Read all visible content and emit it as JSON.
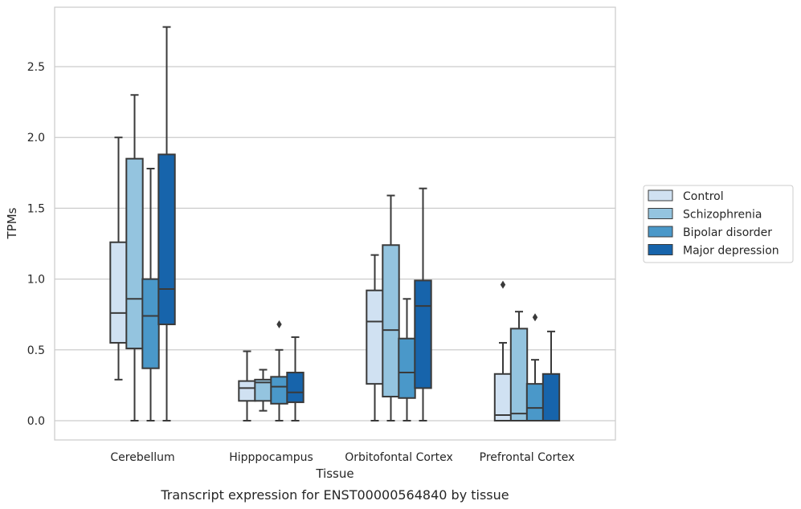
{
  "chart_data": {
    "type": "box",
    "title": "",
    "caption": "Transcript expression for ENST00000564840 by tissue",
    "xlabel": "Tissue",
    "ylabel": "TPMs",
    "ylim": [
      -0.13,
      2.92
    ],
    "yticks": [
      "0.0",
      "0.5",
      "1.0",
      "1.5",
      "2.0",
      "2.5"
    ],
    "categories": [
      "Cerebellum",
      "Hipppocampus",
      "Orbitofontal Cortex",
      "Prefrontal Cortex"
    ],
    "grid": "horizontal",
    "legend_position": "right",
    "series": [
      {
        "name": "Control",
        "color": "#d0e1f2",
        "boxes": [
          {
            "whislo": 0.29,
            "q1": 0.55,
            "med": 0.76,
            "q3": 1.26,
            "whishi": 2.0,
            "fliers": []
          },
          {
            "whislo": 0.0,
            "q1": 0.14,
            "med": 0.23,
            "q3": 0.28,
            "whishi": 0.49,
            "fliers": []
          },
          {
            "whislo": 0.0,
            "q1": 0.26,
            "med": 0.7,
            "q3": 0.92,
            "whishi": 1.17,
            "fliers": []
          },
          {
            "whislo": 0.0,
            "q1": 0.0,
            "med": 0.04,
            "q3": 0.33,
            "whishi": 0.55,
            "fliers": [
              0.96
            ]
          }
        ]
      },
      {
        "name": "Schizophrenia",
        "color": "#94c4df",
        "boxes": [
          {
            "whislo": 0.0,
            "q1": 0.51,
            "med": 0.86,
            "q3": 1.85,
            "whishi": 2.3,
            "fliers": []
          },
          {
            "whislo": 0.07,
            "q1": 0.14,
            "med": 0.27,
            "q3": 0.29,
            "whishi": 0.36,
            "fliers": []
          },
          {
            "whislo": 0.0,
            "q1": 0.17,
            "med": 0.64,
            "q3": 1.24,
            "whishi": 1.59,
            "fliers": []
          },
          {
            "whislo": 0.0,
            "q1": 0.0,
            "med": 0.05,
            "q3": 0.65,
            "whishi": 0.77,
            "fliers": []
          }
        ]
      },
      {
        "name": "Bipolar disorder",
        "color": "#4a98c9",
        "boxes": [
          {
            "whislo": 0.0,
            "q1": 0.37,
            "med": 0.74,
            "q3": 1.0,
            "whishi": 1.78,
            "fliers": []
          },
          {
            "whislo": 0.0,
            "q1": 0.12,
            "med": 0.24,
            "q3": 0.31,
            "whishi": 0.5,
            "fliers": [
              0.68
            ]
          },
          {
            "whislo": 0.0,
            "q1": 0.16,
            "med": 0.34,
            "q3": 0.58,
            "whishi": 0.86,
            "fliers": []
          },
          {
            "whislo": 0.0,
            "q1": 0.0,
            "med": 0.09,
            "q3": 0.26,
            "whishi": 0.43,
            "fliers": [
              0.73
            ]
          }
        ]
      },
      {
        "name": "Major depression",
        "color": "#1764ab",
        "boxes": [
          {
            "whislo": 0.0,
            "q1": 0.68,
            "med": 0.93,
            "q3": 1.88,
            "whishi": 2.78,
            "fliers": []
          },
          {
            "whislo": 0.0,
            "q1": 0.13,
            "med": 0.2,
            "q3": 0.34,
            "whishi": 0.59,
            "fliers": []
          },
          {
            "whislo": 0.0,
            "q1": 0.23,
            "med": 0.81,
            "q3": 0.99,
            "whishi": 1.64,
            "fliers": []
          },
          {
            "whislo": 0.0,
            "q1": 0.0,
            "med": 0.0,
            "q3": 0.33,
            "whishi": 0.63,
            "fliers": []
          }
        ]
      }
    ]
  }
}
